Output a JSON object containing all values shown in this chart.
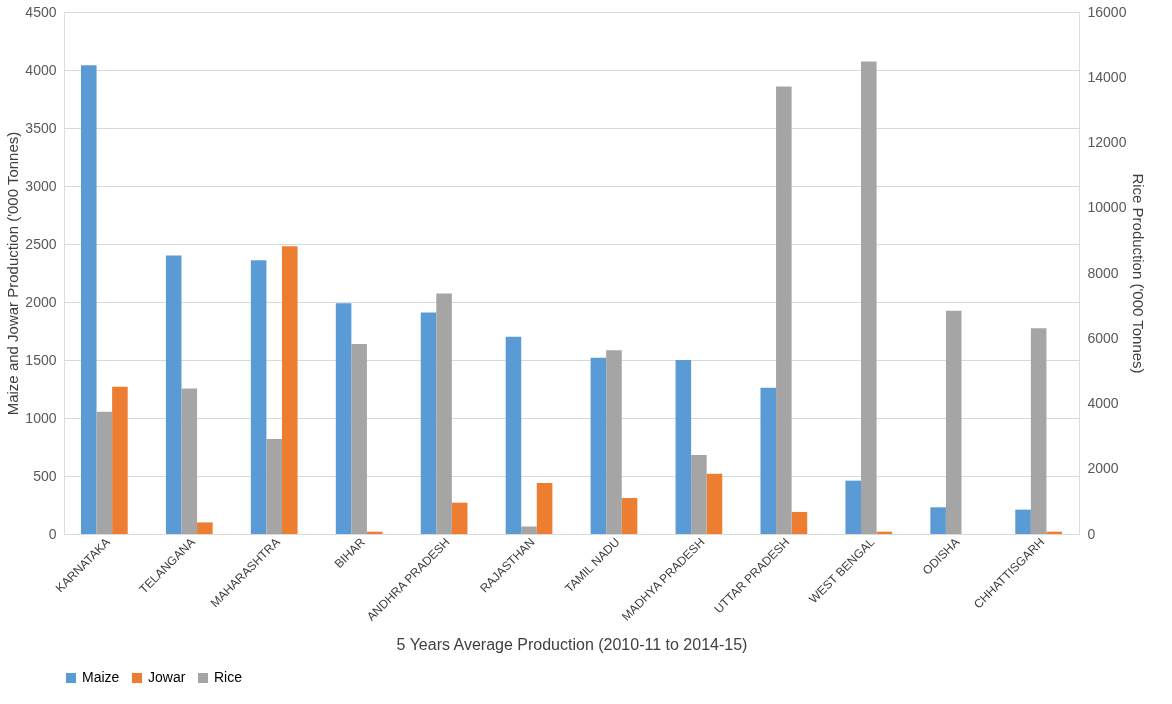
{
  "chart_data": {
    "type": "bar",
    "xlabel": "5 Years Average Production (2010-11  to 2014-15)",
    "ylabel": "Maize and Jowar Production ('000 Tonnes)",
    "y2label": "Rice Production ('000 Tonnes)",
    "categories": [
      "KARNATAKA",
      "TELANGANA",
      "MAHARASHTRA",
      "BIHAR",
      "ANDHRA PRADESH",
      "RAJASTHAN",
      "TAMIL NADU",
      "MADHYA PRADESH",
      "UTTAR PRADESH",
      "WEST BENGAL",
      "ODISHA",
      "CHHATTISGARH"
    ],
    "series": [
      {
        "name": "Maize",
        "color": "#5b9bd5",
        "values": [
          4040,
          2400,
          2360,
          1990,
          1910,
          1700,
          1520,
          1500,
          1260,
          460,
          230,
          210
        ]
      },
      {
        "name": "Jowar",
        "color": "#ed7d31",
        "values": [
          1270,
          100,
          2480,
          20,
          270,
          440,
          310,
          520,
          190,
          20,
          null,
          20
        ]
      },
      {
        "name": "Rice",
        "color": "#a5a5a5",
        "axis": "y2",
        "values": [
          3750,
          4460,
          2910,
          5820,
          7370,
          230,
          5630,
          2420,
          13720,
          14480,
          6840,
          6310
        ]
      }
    ],
    "ylim": [
      0,
      4500
    ],
    "yticks": [
      0,
      500,
      1000,
      1500,
      2000,
      2500,
      3000,
      3500,
      4000,
      4500
    ],
    "y2lim": [
      0,
      16000
    ],
    "y2ticks": [
      0,
      2000,
      4000,
      6000,
      8000,
      10000,
      12000,
      14000,
      16000
    ],
    "grid": "y",
    "legend": "bottom"
  }
}
